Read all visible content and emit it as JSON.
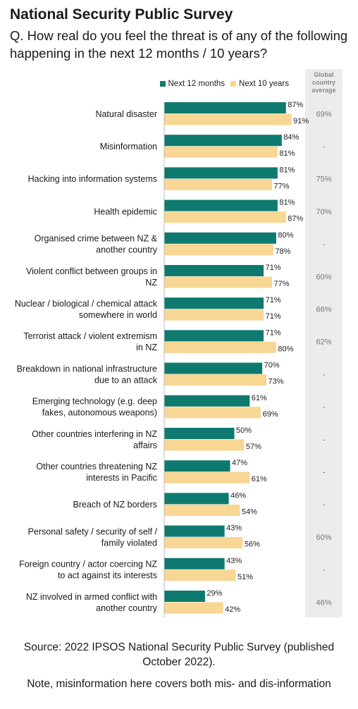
{
  "title": "National Security Public Survey",
  "question": "Q. How real do you feel the threat is of any of the following happening in the next 12 months / 10 years?",
  "global_header": "Global country average",
  "source": "Source: 2022 IPSOS National Security Public Survey (published October 2022).",
  "note": "Note, misinformation here covers both mis- and dis-information",
  "colors": {
    "next12": "#0e7a6f",
    "next10": "#f8d694"
  },
  "chart_data": {
    "type": "bar",
    "orientation": "horizontal",
    "xlim": [
      0,
      100
    ],
    "unit": "%",
    "legend_position": "top",
    "categories": [
      [
        "Natural disaster"
      ],
      [
        "Misinformation"
      ],
      [
        "Hacking into information systems"
      ],
      [
        "Health epidemic"
      ],
      [
        "Organised crime between NZ &",
        "another country"
      ],
      [
        "Violent conflict between groups in",
        "NZ"
      ],
      [
        "Nuclear / biological / chemical attack",
        "somewhere in world"
      ],
      [
        "Terrorist attack / violent extremism",
        "in NZ"
      ],
      [
        "Breakdown in national infrastructure",
        "due to an attack"
      ],
      [
        "Emerging technology (e.g. deep",
        "fakes, autonomous weapons)"
      ],
      [
        "Other countries interfering in NZ",
        "affairs"
      ],
      [
        "Other countries threatening NZ",
        "interests in Pacific"
      ],
      [
        "Breach of NZ borders"
      ],
      [
        "Personal safety / security of self /",
        "family violated"
      ],
      [
        "Foreign country / actor coercing NZ",
        "to act against its interests"
      ],
      [
        "NZ involved in armed conflict with",
        "another country"
      ]
    ],
    "series": [
      {
        "name": "Next 12 months",
        "values": [
          87,
          84,
          81,
          81,
          80,
          71,
          71,
          71,
          70,
          61,
          50,
          47,
          46,
          43,
          43,
          29
        ]
      },
      {
        "name": "Next 10 years",
        "values": [
          91,
          81,
          77,
          87,
          78,
          77,
          71,
          80,
          73,
          69,
          57,
          61,
          54,
          56,
          51,
          42
        ]
      }
    ],
    "global_average": [
      "69%",
      "-",
      "75%",
      "70%",
      "-",
      "60%",
      "66%",
      "62%",
      "-",
      "-",
      "-",
      "-",
      "-",
      "60%",
      "-",
      "46%"
    ]
  }
}
